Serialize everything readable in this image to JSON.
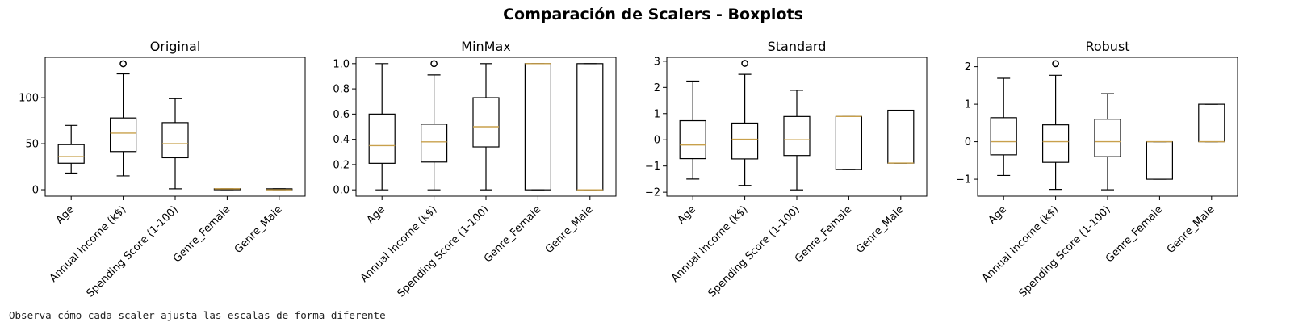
{
  "caption": "Observa cómo cada scaler ajusta las escalas de forma diferente",
  "chart_data": {
    "type": "box",
    "title": "Comparación de Scalers - Boxplots",
    "categories": [
      "Age",
      "Annual Income (k$)",
      "Spending Score (1-100)",
      "Genre_Female",
      "Genre_Male"
    ],
    "median_color": "#c8a04b",
    "panels": [
      {
        "title": "Original",
        "ylim": [
          -7,
          144
        ],
        "yticks": [
          0,
          50,
          100
        ],
        "boxes": [
          {
            "whislo": 18,
            "q1": 28.75,
            "med": 36,
            "q3": 49,
            "whishi": 70,
            "fliers": []
          },
          {
            "whislo": 15,
            "q1": 41.5,
            "med": 61.5,
            "q3": 78,
            "whishi": 126,
            "fliers": [
              137
            ]
          },
          {
            "whislo": 1,
            "q1": 34.75,
            "med": 50,
            "q3": 73,
            "whishi": 99,
            "fliers": []
          },
          {
            "whislo": 0,
            "q1": 0,
            "med": 1,
            "q3": 1,
            "whishi": 1,
            "fliers": []
          },
          {
            "whislo": 0,
            "q1": 0,
            "med": 0,
            "q3": 1,
            "whishi": 1,
            "fliers": []
          }
        ]
      },
      {
        "title": "MinMax",
        "ylim": [
          -0.05,
          1.05
        ],
        "yticks": [
          0.0,
          0.2,
          0.4,
          0.6,
          0.8,
          1.0
        ],
        "boxes": [
          {
            "whislo": 0,
            "q1": 0.21,
            "med": 0.35,
            "q3": 0.6,
            "whishi": 1.0,
            "fliers": []
          },
          {
            "whislo": 0,
            "q1": 0.22,
            "med": 0.38,
            "q3": 0.52,
            "whishi": 0.91,
            "fliers": [
              1.0
            ]
          },
          {
            "whislo": 0,
            "q1": 0.34,
            "med": 0.5,
            "q3": 0.73,
            "whishi": 1.0,
            "fliers": []
          },
          {
            "whislo": 0,
            "q1": 0,
            "med": 1,
            "q3": 1,
            "whishi": 1,
            "fliers": []
          },
          {
            "whislo": 0,
            "q1": 0,
            "med": 0,
            "q3": 1,
            "whishi": 1,
            "fliers": []
          }
        ]
      },
      {
        "title": "Standard",
        "ylim": [
          -2.15,
          3.15
        ],
        "yticks": [
          -2,
          -1,
          0,
          1,
          2,
          3
        ],
        "boxes": [
          {
            "whislo": -1.5,
            "q1": -0.72,
            "med": -0.2,
            "q3": 0.73,
            "whishi": 2.24,
            "fliers": []
          },
          {
            "whislo": -1.74,
            "q1": -0.73,
            "med": 0.02,
            "q3": 0.64,
            "whishi": 2.5,
            "fliers": [
              2.92
            ]
          },
          {
            "whislo": -1.91,
            "q1": -0.6,
            "med": 0.0,
            "q3": 0.89,
            "whishi": 1.89,
            "fliers": []
          },
          {
            "whislo": -1.13,
            "q1": -1.13,
            "med": 0.89,
            "q3": 0.89,
            "whishi": 0.89,
            "fliers": []
          },
          {
            "whislo": -0.89,
            "q1": -0.89,
            "med": -0.89,
            "q3": 1.13,
            "whishi": 1.13,
            "fliers": []
          }
        ]
      },
      {
        "title": "Robust",
        "ylim": [
          -1.45,
          2.25
        ],
        "yticks": [
          -1,
          0,
          1,
          2
        ],
        "boxes": [
          {
            "whislo": -0.9,
            "q1": -0.35,
            "med": 0.0,
            "q3": 0.64,
            "whishi": 1.69,
            "fliers": []
          },
          {
            "whislo": -1.27,
            "q1": -0.55,
            "med": 0.0,
            "q3": 0.45,
            "whishi": 1.77,
            "fliers": [
              2.08
            ]
          },
          {
            "whislo": -1.28,
            "q1": -0.4,
            "med": 0.0,
            "q3": 0.6,
            "whishi": 1.28,
            "fliers": []
          },
          {
            "whislo": -1,
            "q1": -1,
            "med": 0,
            "q3": 0,
            "whishi": 0,
            "fliers": []
          },
          {
            "whislo": 0,
            "q1": 0,
            "med": 0,
            "q3": 1,
            "whishi": 1,
            "fliers": []
          }
        ]
      }
    ]
  }
}
